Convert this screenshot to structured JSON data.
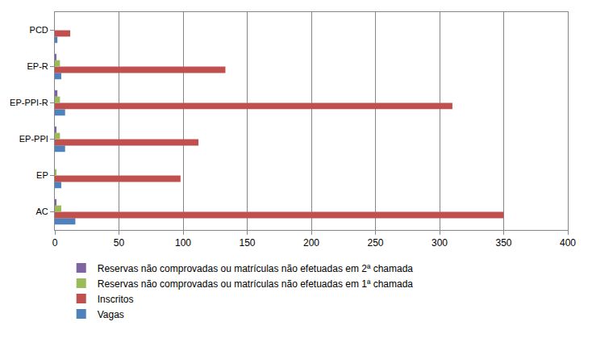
{
  "chart_data": {
    "type": "bar",
    "orientation": "horizontal",
    "categories": [
      "AC",
      "EP",
      "EP-PPI",
      "EP-PPI-R",
      "EP-R",
      "PCD"
    ],
    "series": [
      {
        "name": "Vagas",
        "color": "#4f81bd",
        "values": [
          16,
          5,
          8,
          8,
          5,
          2
        ]
      },
      {
        "name": "Inscritos",
        "color": "#c0504d",
        "values": [
          350,
          98,
          112,
          310,
          133,
          12
        ]
      },
      {
        "name": "Reservas não comprovadas ou matrículas não efetuadas em 1ª chamada",
        "color": "#9bbb59",
        "values": [
          5,
          1,
          4,
          4,
          4,
          0
        ]
      },
      {
        "name": "Reservas não comprovadas ou matrículas não efetuadas em 2ª chamada",
        "color": "#8064a2",
        "values": [
          1,
          0,
          1,
          2,
          1,
          0
        ]
      }
    ],
    "xlim": [
      0,
      400
    ],
    "xticks": [
      0,
      50,
      100,
      150,
      200,
      250,
      300,
      350,
      400
    ],
    "grid": true,
    "legend": "bottom"
  }
}
